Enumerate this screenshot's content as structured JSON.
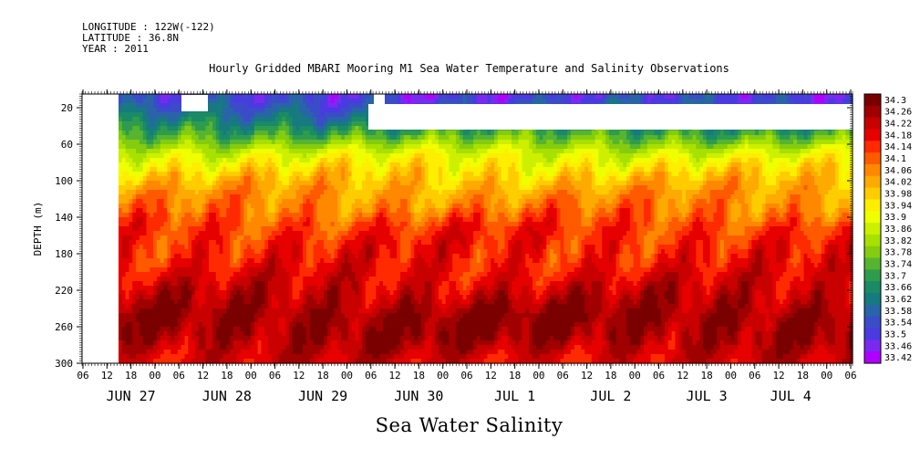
{
  "header": {
    "longitude": "LONGITUDE : 122W(-122)",
    "latitude": "LATITUDE : 36.8N",
    "year": "YEAR : 2011"
  },
  "chart_data": {
    "type": "heatmap",
    "title": "Hourly Gridded MBARI Mooring M1 Sea Water Temperature and Salinity Observations",
    "bottom_title": "Sea Water Salinity",
    "ylabel": "DEPTH (m)",
    "y_ticks": [
      20,
      60,
      100,
      140,
      180,
      220,
      260,
      300
    ],
    "ylim": [
      300,
      5
    ],
    "x_hour_labels": [
      "06",
      "12",
      "18",
      "00",
      "06",
      "12",
      "18",
      "00",
      "06",
      "12",
      "18",
      "00",
      "06",
      "12",
      "18",
      "00",
      "06",
      "12",
      "18",
      "00",
      "06",
      "12",
      "18",
      "00",
      "06",
      "12",
      "18",
      "00",
      "06",
      "12",
      "18",
      "00",
      "06"
    ],
    "x_date_labels": [
      {
        "label": "JUN 27",
        "slot": 2
      },
      {
        "label": "JUN 28",
        "slot": 6
      },
      {
        "label": "JUN 29",
        "slot": 10
      },
      {
        "label": "JUN 30",
        "slot": 14
      },
      {
        "label": "JUL  1",
        "slot": 18
      },
      {
        "label": "JUL  2",
        "slot": 22
      },
      {
        "label": "JUL  3",
        "slot": 26
      },
      {
        "label": "JUL  4",
        "slot": 29.5
      }
    ],
    "colorbar": {
      "levels": [
        "34.3",
        "34.26",
        "34.22",
        "34.18",
        "34.14",
        "34.1",
        "34.06",
        "34.02",
        "33.98",
        "33.94",
        "33.9",
        "33.86",
        "33.82",
        "33.78",
        "33.74",
        "33.7",
        "33.66",
        "33.62",
        "33.58",
        "33.54",
        "33.5",
        "33.46",
        "33.42"
      ],
      "colors": [
        "#7a0000",
        "#a00000",
        "#c80000",
        "#e60000",
        "#ff2a00",
        "#ff5a00",
        "#ff8800",
        "#ffaa00",
        "#ffcc00",
        "#ffee00",
        "#f0ff00",
        "#ccf000",
        "#a8e000",
        "#84cc10",
        "#56b430",
        "#2e9c4c",
        "#1b8a66",
        "#167a80",
        "#2a64a8",
        "#3a4cc8",
        "#4a3ae0",
        "#7a2af0",
        "#b000ff"
      ],
      "range": [
        33.42,
        34.3
      ]
    },
    "salinity_profile": [
      {
        "depth": 10,
        "value": 33.52
      },
      {
        "depth": 30,
        "value": 33.62
      },
      {
        "depth": 50,
        "value": 33.74
      },
      {
        "depth": 70,
        "value": 33.88
      },
      {
        "depth": 90,
        "value": 33.96
      },
      {
        "depth": 110,
        "value": 34.02
      },
      {
        "depth": 130,
        "value": 34.06
      },
      {
        "depth": 150,
        "value": 34.12
      },
      {
        "depth": 170,
        "value": 34.14
      },
      {
        "depth": 190,
        "value": 34.15
      },
      {
        "depth": 210,
        "value": 34.18
      },
      {
        "depth": 230,
        "value": 34.22
      },
      {
        "depth": 250,
        "value": 34.26
      },
      {
        "depth": 270,
        "value": 34.25
      },
      {
        "depth": 290,
        "value": 34.2
      },
      {
        "depth": 300,
        "value": 34.18
      }
    ]
  }
}
